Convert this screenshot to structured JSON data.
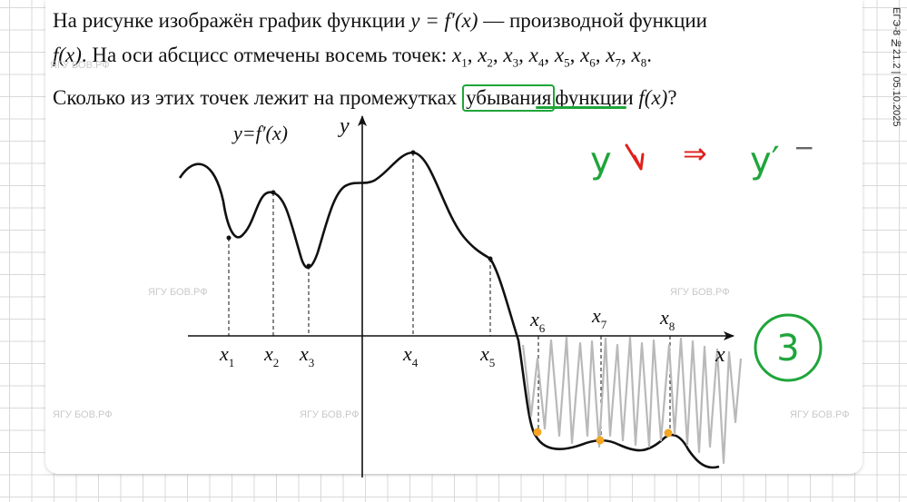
{
  "problem": {
    "line1_text": "На рисунке изображён график функции ",
    "line1_formula": "y = f′(x)",
    "line1_tail": " — производной функции",
    "line2_formula": "f(x)",
    "line2_text": ". На оси абсцисс отмечены восемь точек: ",
    "points_list": [
      "x",
      "x",
      "x",
      "x",
      "x",
      "x",
      "x",
      "x"
    ],
    "points_subs": [
      "1",
      "2",
      "3",
      "4",
      "5",
      "6",
      "7",
      "8"
    ],
    "line3_text": "Сколько из этих точек лежит на промежутках ",
    "highlight_word": "убывания",
    "line3_tail": "функции ",
    "line3_formula": "f(x)",
    "line3_q": "?"
  },
  "sidebar_text": "ЕГЭ-8 №21.2 | 05.10.2025",
  "graph": {
    "function_label": "y=f′(x)",
    "y_axis_label": "y",
    "x_axis_label": "x",
    "point_labels": [
      {
        "name": "x",
        "sub": "1"
      },
      {
        "name": "x",
        "sub": "2"
      },
      {
        "name": "x",
        "sub": "3"
      },
      {
        "name": "x",
        "sub": "4"
      },
      {
        "name": "x",
        "sub": "5"
      },
      {
        "name": "x",
        "sub": "6"
      },
      {
        "name": "x",
        "sub": "7"
      },
      {
        "name": "x",
        "sub": "8"
      }
    ]
  },
  "annotations": {
    "note_y": "y",
    "note_arrow": "⇒",
    "note_yprime": "y′",
    "note_minus": "−",
    "answer": "3"
  },
  "watermark": "ЯГУ БОВ.РФ",
  "colors": {
    "green": "#1fa53a",
    "red": "#e0201b",
    "orange": "#f5a623",
    "scribble": "#b9b9b9"
  }
}
